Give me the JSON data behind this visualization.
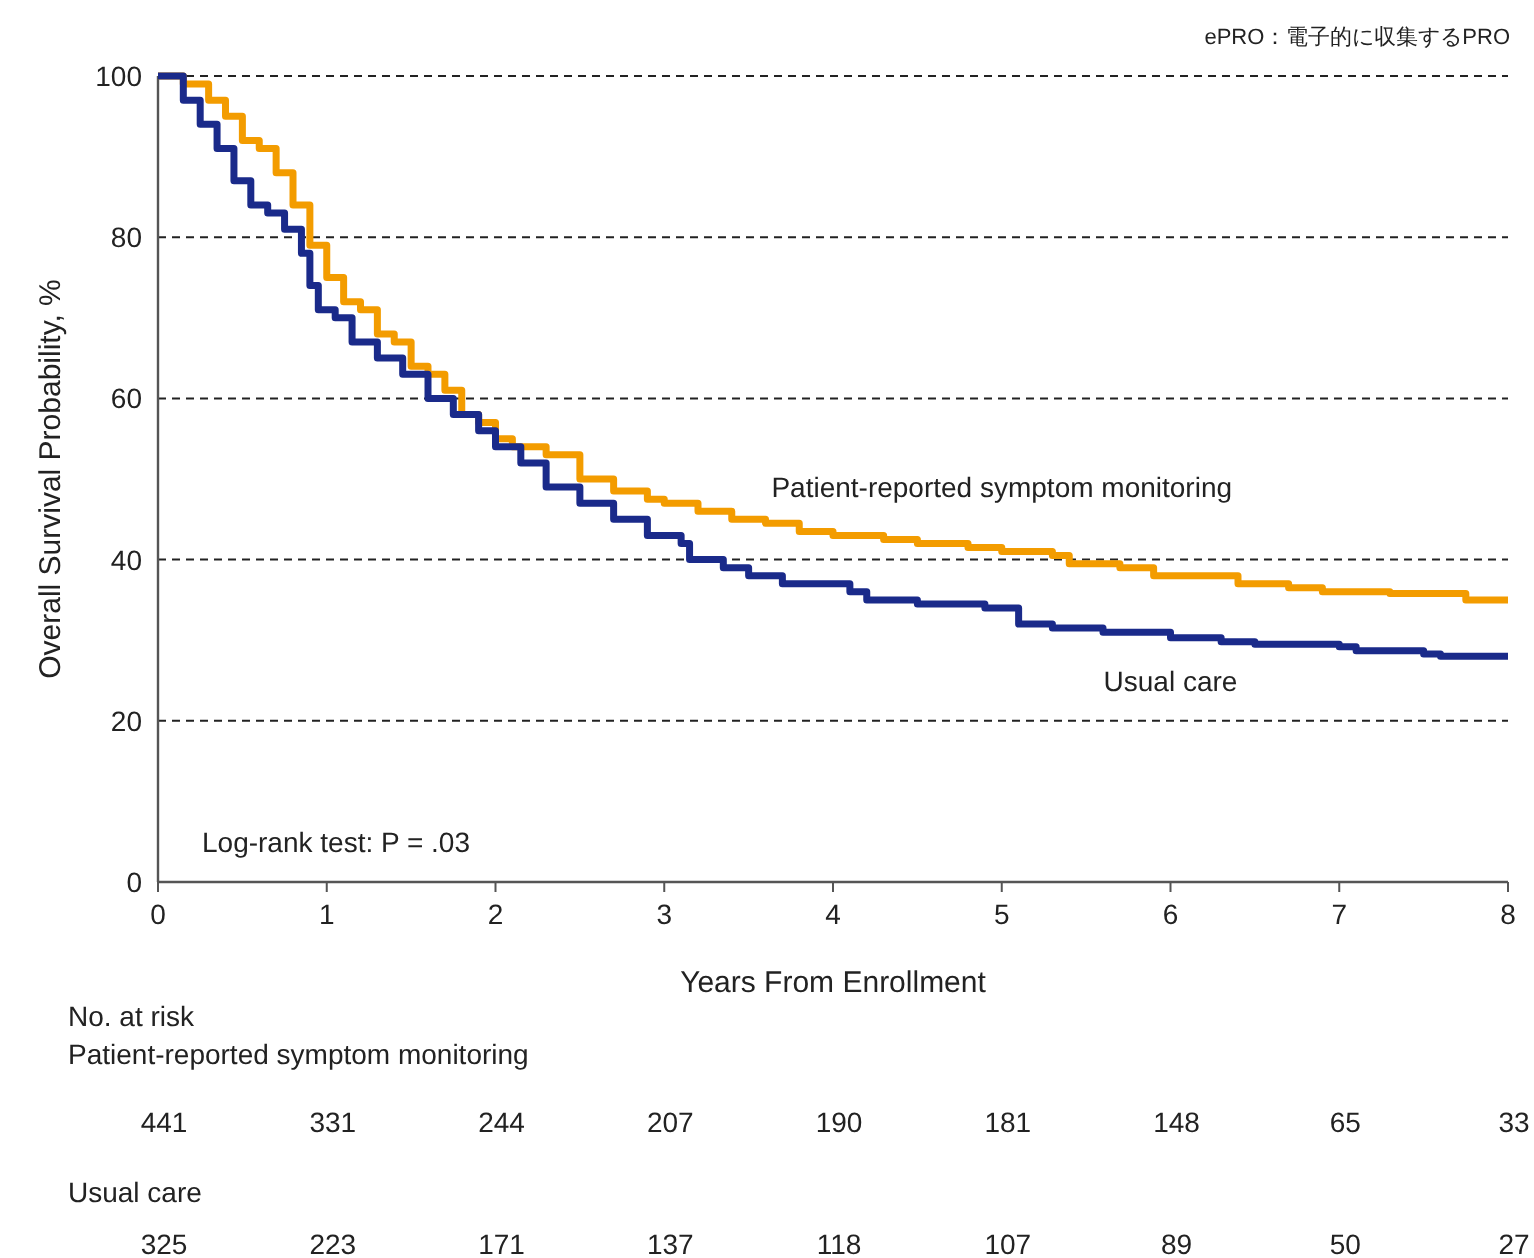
{
  "chart_data": {
    "type": "step",
    "ylabel": "Overall Survival Probability, %",
    "xlabel": "Years From Enrollment",
    "xlim": [
      0,
      8
    ],
    "xticks": [
      0,
      1,
      2,
      3,
      4,
      5,
      6,
      7,
      8
    ],
    "ylim": [
      0,
      100
    ],
    "yticks": [
      0,
      20,
      40,
      60,
      80,
      100
    ],
    "grid": "y",
    "legend": false,
    "series": [
      {
        "name": "Patient-reported symptom monitoring",
        "color": "#f39c00",
        "x": [
          0,
          0.05,
          0.15,
          0.3,
          0.4,
          0.5,
          0.6,
          0.7,
          0.8,
          0.9,
          1.0,
          1.1,
          1.2,
          1.3,
          1.4,
          1.5,
          1.6,
          1.7,
          1.8,
          1.9,
          2.0,
          2.1,
          2.3,
          2.5,
          2.7,
          2.9,
          3.0,
          3.2,
          3.4,
          3.6,
          3.8,
          4.0,
          4.3,
          4.5,
          4.8,
          5.0,
          5.3,
          5.4,
          5.7,
          5.9,
          6.3,
          6.4,
          6.7,
          6.9,
          7.3,
          7.75,
          8.0
        ],
        "values": [
          100,
          100,
          99,
          97,
          95,
          92,
          91,
          88,
          84,
          79,
          75,
          72,
          71,
          68,
          67,
          64,
          63,
          61,
          58,
          57,
          55,
          54,
          53,
          50,
          48.5,
          47.5,
          47,
          46,
          45,
          44.5,
          43.5,
          43,
          42.5,
          42,
          41.5,
          41,
          40.5,
          39.5,
          39,
          38,
          38,
          37,
          36.5,
          36,
          35.8,
          35,
          35
        ]
      },
      {
        "name": "Usual care",
        "color": "#1a2a8a",
        "x": [
          0,
          0.05,
          0.15,
          0.25,
          0.35,
          0.45,
          0.55,
          0.65,
          0.75,
          0.85,
          0.9,
          0.95,
          1.05,
          1.15,
          1.3,
          1.45,
          1.6,
          1.75,
          1.9,
          2.0,
          2.15,
          2.3,
          2.5,
          2.7,
          2.9,
          3.1,
          3.15,
          3.35,
          3.5,
          3.7,
          4.1,
          4.2,
          4.5,
          4.9,
          5.1,
          5.3,
          5.6,
          6.0,
          6.3,
          6.5,
          7.0,
          7.1,
          7.5,
          7.6,
          8.0
        ],
        "values": [
          100,
          100,
          97,
          94,
          91,
          87,
          84,
          83,
          81,
          78,
          74,
          71,
          70,
          67,
          65,
          63,
          60,
          58,
          56,
          54,
          52,
          49,
          47,
          45,
          43,
          42,
          40,
          39,
          38,
          37,
          36,
          35,
          34.5,
          34,
          32,
          31.5,
          31,
          30.3,
          29.8,
          29.5,
          29.2,
          28.7,
          28.3,
          28,
          28
        ]
      }
    ],
    "annotations": [
      "ePRO：電子的に収集するPRO",
      "Log-rank test: P = .03",
      "No. at risk",
      "Patient-reported symptom monitoring",
      "441",
      "331",
      "244",
      "207",
      "190",
      "181",
      "148",
      "65",
      "33",
      "Usual care",
      "325",
      "223",
      "171",
      "137",
      "118",
      "107",
      "89",
      "50",
      "27"
    ]
  }
}
